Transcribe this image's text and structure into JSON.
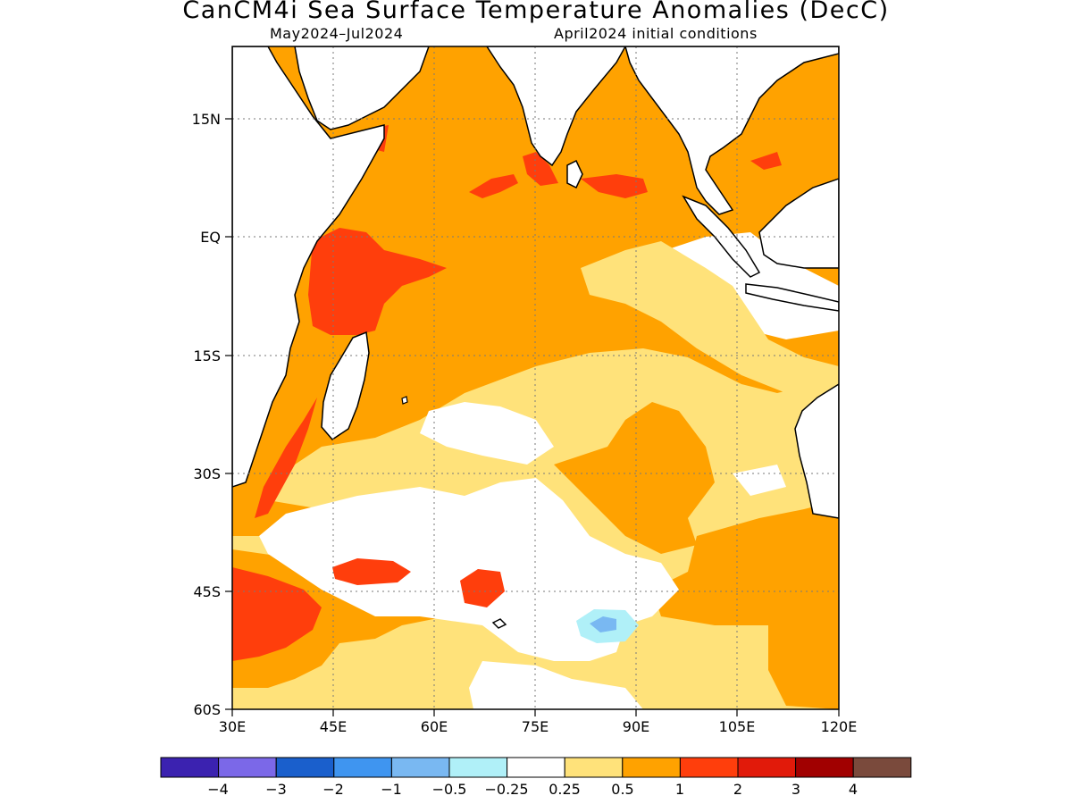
{
  "header": {
    "title": "CanCM4i Sea Surface Temperature Anomalies (DecC)",
    "period": "May2024–Jul2024",
    "initial_conditions": "April2024 initial conditions"
  },
  "map": {
    "region": {
      "lon_range": [
        30,
        120
      ],
      "lat_range": [
        -60,
        24
      ]
    },
    "lat_ticks": [
      "15N",
      "EQ",
      "15S",
      "30S",
      "45S",
      "60S"
    ],
    "lon_ticks": [
      "30E",
      "45E",
      "60E",
      "75E",
      "90E",
      "105E",
      "120E"
    ],
    "grid": true
  },
  "colorbar": {
    "labels": [
      "−4",
      "−3",
      "−2",
      "−1",
      "−0.5",
      "−0.25",
      "0.25",
      "0.5",
      "1",
      "2",
      "3",
      "4"
    ],
    "colors": [
      "#3b22b0",
      "#7b68e8",
      "#1a5fcc",
      "#3f95f0",
      "#79b8f2",
      "#b0f0f8",
      "#ffffff",
      "#ffe27a",
      "#ffa200",
      "#ff3e0c",
      "#e11a0a",
      "#a10000",
      "#7a4a3c"
    ]
  }
}
